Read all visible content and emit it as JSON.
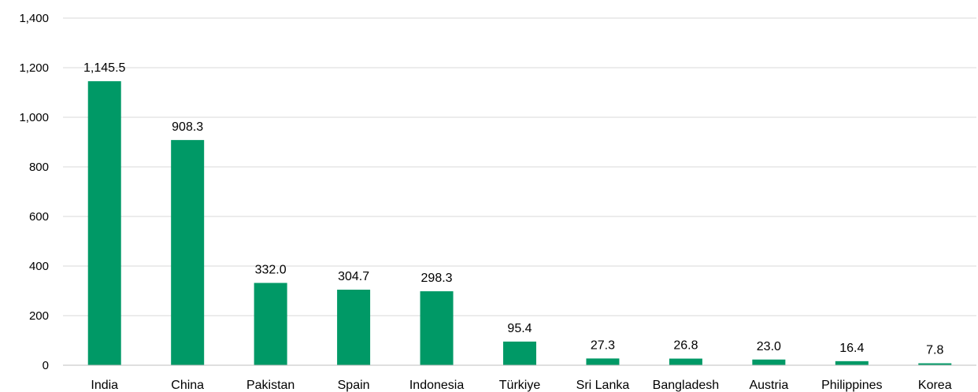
{
  "chart_data": {
    "type": "bar",
    "categories": [
      "India",
      "China",
      "Pakistan",
      "Spain",
      "Indonesia",
      "Türkiye",
      "Sri Lanka",
      "Bangladesh",
      "Austria",
      "Philippines",
      "Korea"
    ],
    "values": [
      1145.5,
      908.3,
      332.0,
      304.7,
      298.3,
      95.4,
      27.3,
      26.8,
      23.0,
      16.4,
      7.8
    ],
    "data_labels": [
      "1,145.5",
      "908.3",
      "332.0",
      "304.7",
      "298.3",
      "95.4",
      "27.3",
      "26.8",
      "23.0",
      "16.4",
      "7.8"
    ],
    "yticks": [
      0,
      200,
      400,
      600,
      800,
      1000,
      1200,
      1400
    ],
    "ytick_labels": [
      "0",
      "200",
      "400",
      "600",
      "800",
      "1,000",
      "1,200",
      "1,400"
    ],
    "ylim": [
      0,
      1400
    ],
    "title": "",
    "xlabel": "",
    "ylabel": "",
    "grid": true,
    "legend": "none",
    "bar_color": "#009966"
  }
}
